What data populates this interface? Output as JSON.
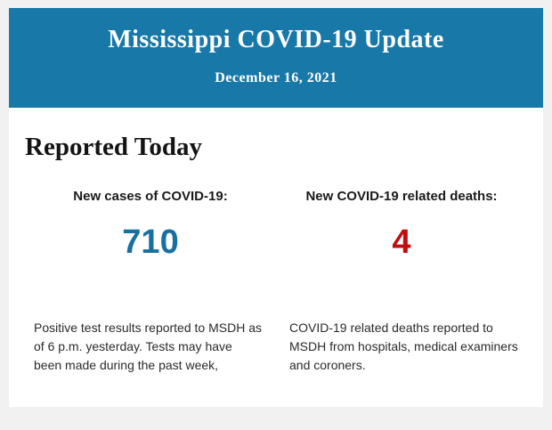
{
  "colors": {
    "page_bg": "#f1f1f1",
    "header_bg": "#1878a8",
    "cases_number": "#17719f",
    "deaths_number": "#c00d0d"
  },
  "header": {
    "title": "Mississippi COVID-19 Update",
    "date": "December 16, 2021"
  },
  "report": {
    "section_title": "Reported Today",
    "cases": {
      "label": "New cases of COVID-19:",
      "value": "710",
      "description": "Positive test results reported to MSDH as of 6 p.m. yesterday. Tests may have been made during the past week,"
    },
    "deaths": {
      "label": "New COVID-19 related deaths:",
      "value": "4",
      "description": "COVID-19 related deaths reported to MSDH from hospitals, medical examiners and coroners."
    }
  }
}
